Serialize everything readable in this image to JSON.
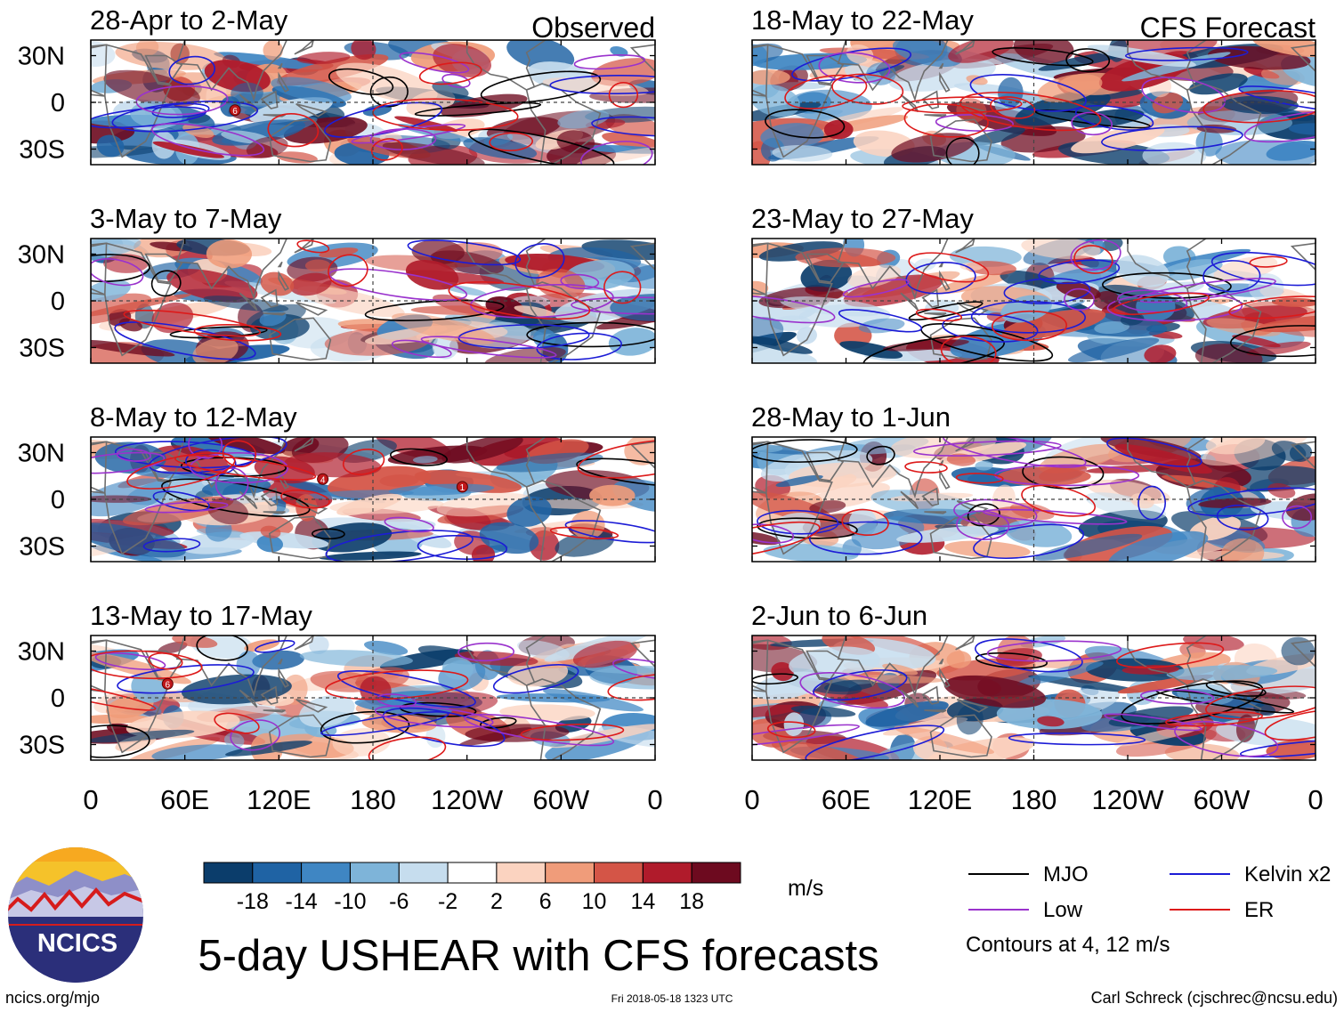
{
  "chart_data": {
    "type": "heatmap",
    "title": "5-day USHEAR with CFS forecasts",
    "units": "m/s",
    "columns": [
      {
        "header": "Observed",
        "panels": [
          {
            "label": "28-Apr to 2-May",
            "storms": [
              {
                "lon": 92,
                "lat": -5,
                "num": "6"
              }
            ]
          },
          {
            "label": "3-May to 7-May",
            "storms": []
          },
          {
            "label": "8-May to 12-May",
            "storms": [
              {
                "lon": 148,
                "lat": 13,
                "num": "4"
              },
              {
                "lon": 237,
                "lat": 8,
                "num": "1"
              }
            ]
          },
          {
            "label": "13-May to 17-May",
            "storms": [
              {
                "lon": 49,
                "lat": 9,
                "num": "6"
              }
            ]
          }
        ]
      },
      {
        "header": "CFS Forecast",
        "panels": [
          {
            "label": "18-May to 22-May",
            "storms": []
          },
          {
            "label": "23-May to 27-May",
            "storms": []
          },
          {
            "label": "28-May to 1-Jun",
            "storms": []
          },
          {
            "label": "2-Jun to 6-Jun",
            "storms": []
          }
        ]
      }
    ],
    "x_ticks": [
      "0",
      "60E",
      "120E",
      "180",
      "120W",
      "60W",
      "0"
    ],
    "y_ticks": [
      "30N",
      "0",
      "30S"
    ],
    "xlim": [
      0,
      360
    ],
    "ylim": [
      -40,
      40
    ],
    "colorbar": {
      "labels": [
        "-18",
        "-14",
        "-10",
        "-6",
        "-2",
        "2",
        "6",
        "10",
        "14",
        "18"
      ],
      "colors": [
        "#0b3d6b",
        "#1f63a4",
        "#3f86c3",
        "#7eb4d9",
        "#c6ddee",
        "#ffffff",
        "#fbd3c0",
        "#f09c7a",
        "#d45547",
        "#b01b2b",
        "#6d0a1f"
      ]
    },
    "legend": [
      {
        "label": "MJO",
        "color": "#000000"
      },
      {
        "label": "Kelvin x2",
        "color": "#1c1cd6"
      },
      {
        "label": "Low",
        "color": "#9a32cd"
      },
      {
        "label": "ER",
        "color": "#dd1a1a"
      }
    ],
    "contour_note": "Contours at 4, 12 m/s"
  },
  "footer": {
    "logo_text": "NCICS",
    "url": "ncics.org/mjo",
    "timestamp": "Fri 2018-05-18 1323 UTC",
    "credit": "Carl Schreck (cjschrec@ncsu.edu)"
  }
}
